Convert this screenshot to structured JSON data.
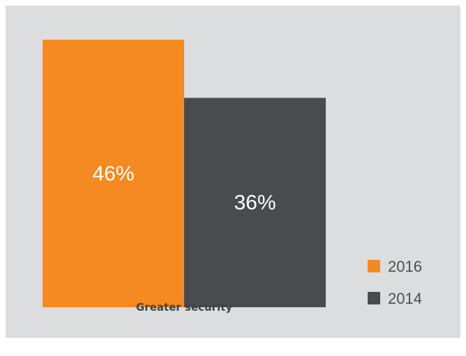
{
  "chart_data": {
    "type": "bar",
    "categories": [
      "Greater security"
    ],
    "series": [
      {
        "name": "2016",
        "values": [
          46
        ],
        "color": "#f48a21"
      },
      {
        "name": "2014",
        "values": [
          36
        ],
        "color": "#4a4b4e"
      }
    ],
    "data_labels": [
      "46%",
      "36%"
    ],
    "ylim": [
      0,
      50
    ],
    "grid": false,
    "legend_position": "bottom-right",
    "background": "#dcdddf"
  }
}
